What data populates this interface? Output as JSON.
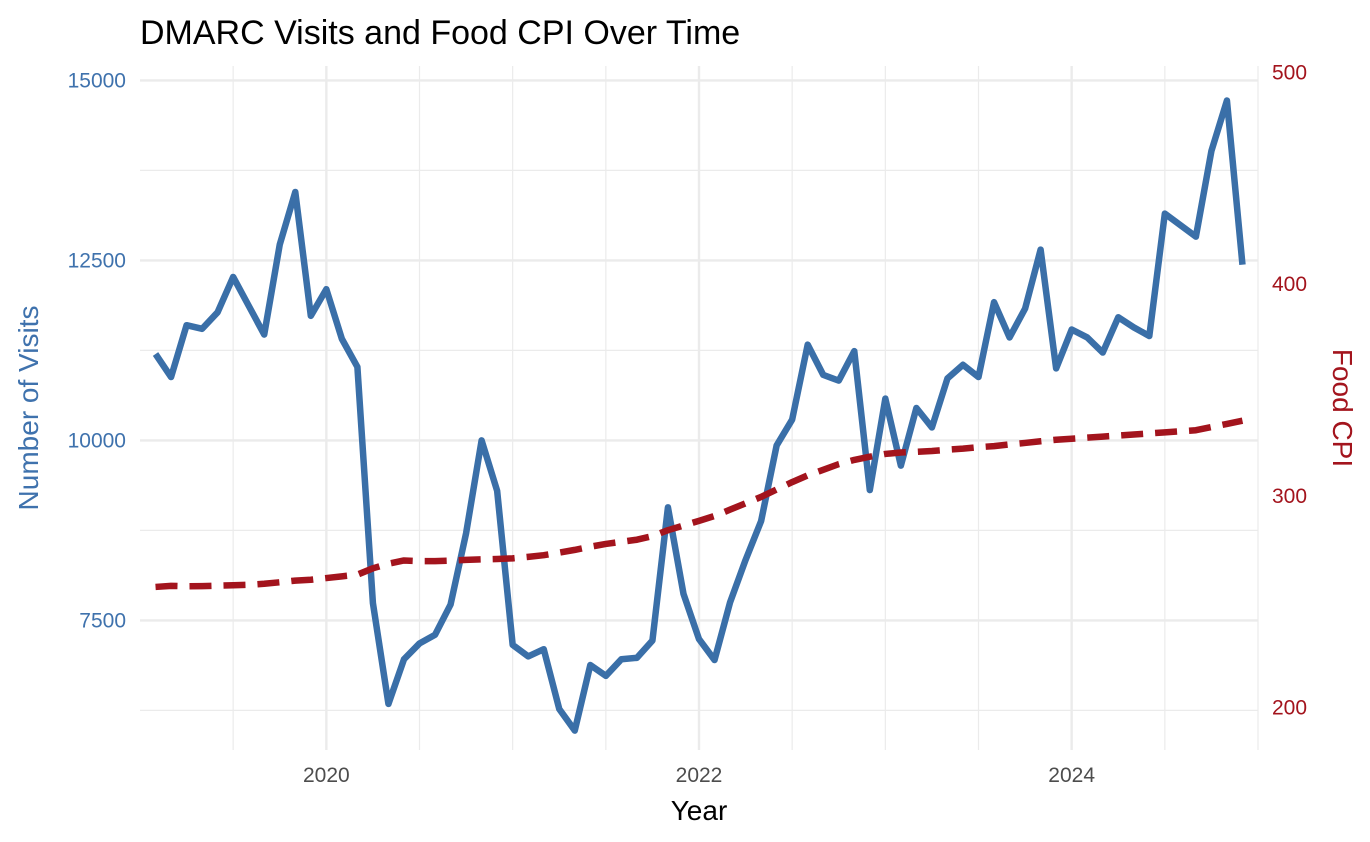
{
  "chart_data": {
    "type": "line",
    "title": "DMARC Visits and Food CPI Over Time",
    "xlabel": "Year",
    "ylabel_left": "Number of Visits",
    "ylabel_right": "Food CPI",
    "colors": {
      "visits": "#3a6fa8",
      "cpi": "#a3141d",
      "grid": "#ebebeb",
      "left_axis": "#3f72ad",
      "right_axis": "#a3141d"
    },
    "xlim": [
      2019.0,
      2025.0
    ],
    "x_ticks": [
      2020,
      2022,
      2024
    ],
    "x_tick_labels": [
      "2020",
      "2022",
      "2024"
    ],
    "ylim_left": [
      5700,
      15200
    ],
    "y_ticks_left": [
      7500,
      10000,
      12500,
      15000
    ],
    "y_tick_labels_left": [
      "7500",
      "10000",
      "12500",
      "15000"
    ],
    "ylim_right": [
      180,
      503
    ],
    "y_ticks_right": [
      200,
      300,
      400,
      500
    ],
    "y_tick_labels_right": [
      "200",
      "300",
      "400",
      "500"
    ],
    "grid": true,
    "x": [
      "2019-02",
      "2019-03",
      "2019-04",
      "2019-05",
      "2019-06",
      "2019-07",
      "2019-08",
      "2019-09",
      "2019-10",
      "2019-11",
      "2019-12",
      "2020-01",
      "2020-02",
      "2020-03",
      "2020-04",
      "2020-05",
      "2020-06",
      "2020-07",
      "2020-08",
      "2020-09",
      "2020-10",
      "2020-11",
      "2020-12",
      "2021-01",
      "2021-02",
      "2021-03",
      "2021-04",
      "2021-05",
      "2021-06",
      "2021-07",
      "2021-08",
      "2021-09",
      "2021-10",
      "2021-11",
      "2021-12",
      "2022-01",
      "2022-02",
      "2022-03",
      "2022-04",
      "2022-05",
      "2022-06",
      "2022-07",
      "2022-08",
      "2022-09",
      "2022-10",
      "2022-11",
      "2022-12",
      "2023-01",
      "2023-02",
      "2023-03",
      "2023-04",
      "2023-05",
      "2023-06",
      "2023-07",
      "2023-08",
      "2023-09",
      "2023-10",
      "2023-11",
      "2023-12",
      "2024-01",
      "2024-02",
      "2024-03",
      "2024-04",
      "2024-05",
      "2024-06",
      "2024-07",
      "2024-08",
      "2024-09",
      "2024-10",
      "2024-11",
      "2024-12"
    ],
    "series": [
      {
        "name": "Number of Visits",
        "axis": "left",
        "values": [
          11200,
          10880,
          11600,
          11550,
          11780,
          12270,
          11870,
          11470,
          12720,
          13450,
          11730,
          12100,
          11410,
          11020,
          7740,
          6340,
          6960,
          7180,
          7300,
          7720,
          8710,
          10000,
          9300,
          7160,
          7000,
          7100,
          6270,
          5970,
          6880,
          6730,
          6960,
          6980,
          7220,
          9070,
          7870,
          7240,
          6950,
          7750,
          8340,
          8880,
          9930,
          10290,
          11330,
          10910,
          10830,
          11240,
          9310,
          10580,
          9650,
          10450,
          10180,
          10860,
          11050,
          10880,
          11920,
          11430,
          11830,
          12650,
          11000,
          11540,
          11430,
          11220,
          11710,
          11570,
          11450,
          13150,
          12990,
          12830,
          14020,
          14720,
          12440
        ]
      },
      {
        "name": "Food CPI",
        "axis": "right",
        "values": [
          257,
          257.5,
          257.3,
          257.4,
          257.6,
          257.8,
          258,
          258.5,
          259.2,
          260,
          260.4,
          261.2,
          262,
          262.8,
          265.8,
          268,
          269.5,
          269.2,
          269.2,
          269.4,
          269.8,
          270,
          270.2,
          270.5,
          271.2,
          272,
          273.2,
          274.5,
          276,
          277.3,
          278.3,
          279.3,
          281,
          283.8,
          286,
          288.2,
          290.5,
          293.5,
          296.5,
          299.5,
          303,
          306.5,
          309.7,
          312.3,
          315,
          317,
          318.5,
          319.8,
          320.5,
          320.8,
          321.2,
          321.8,
          322.3,
          323,
          323.5,
          324.3,
          325,
          325.8,
          326.5,
          327,
          327.5,
          328,
          328.5,
          329,
          329.5,
          330,
          330.5,
          331,
          332.5,
          334,
          335.5
        ]
      }
    ]
  }
}
